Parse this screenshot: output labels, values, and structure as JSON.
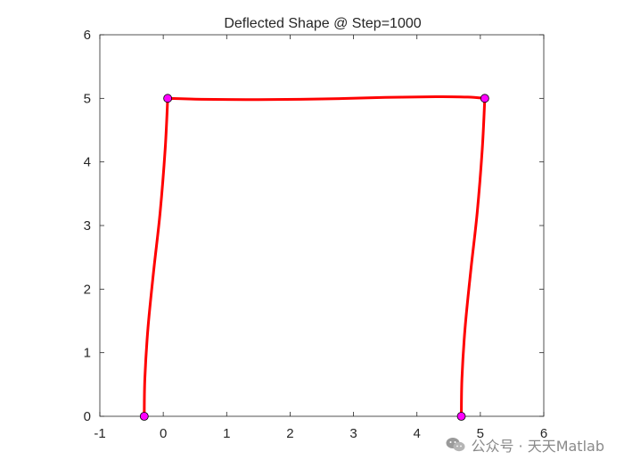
{
  "chart_data": {
    "type": "line",
    "title": "Deflected Shape @ Step=1000",
    "xlabel": "",
    "ylabel": "",
    "xlim": [
      -1,
      6
    ],
    "ylim": [
      0,
      6
    ],
    "xticks": [
      "-1",
      "0",
      "1",
      "2",
      "3",
      "4",
      "5",
      "6"
    ],
    "yticks": [
      "0",
      "1",
      "2",
      "3",
      "4",
      "5",
      "6"
    ],
    "grid": false,
    "line_color": "#ff0000",
    "node_color": "#ff00ff",
    "series": [
      {
        "x": [
          -0.3,
          -0.29,
          -0.24,
          -0.15,
          -0.05,
          0.03,
          0.07
        ],
        "y": [
          0,
          0.6,
          1.4,
          2.3,
          3.2,
          4.2,
          5.0
        ]
      },
      {
        "x": [
          0.07,
          0.6,
          1.5,
          2.5,
          3.5,
          4.3,
          4.8,
          5.07
        ],
        "y": [
          5.0,
          4.985,
          4.98,
          4.99,
          5.015,
          5.025,
          5.02,
          5.0
        ]
      },
      {
        "x": [
          4.7,
          4.71,
          4.76,
          4.85,
          4.95,
          5.03,
          5.07
        ],
        "y": [
          0,
          0.6,
          1.4,
          2.3,
          3.2,
          4.2,
          5.0
        ]
      }
    ],
    "nodes": [
      {
        "x": -0.3,
        "y": 0
      },
      {
        "x": 4.7,
        "y": 0
      },
      {
        "x": 0.07,
        "y": 5.0
      },
      {
        "x": 5.07,
        "y": 5.0
      }
    ]
  },
  "watermark": {
    "text": "公众号 · 天天Matlab",
    "icon": "wechat-icon"
  }
}
